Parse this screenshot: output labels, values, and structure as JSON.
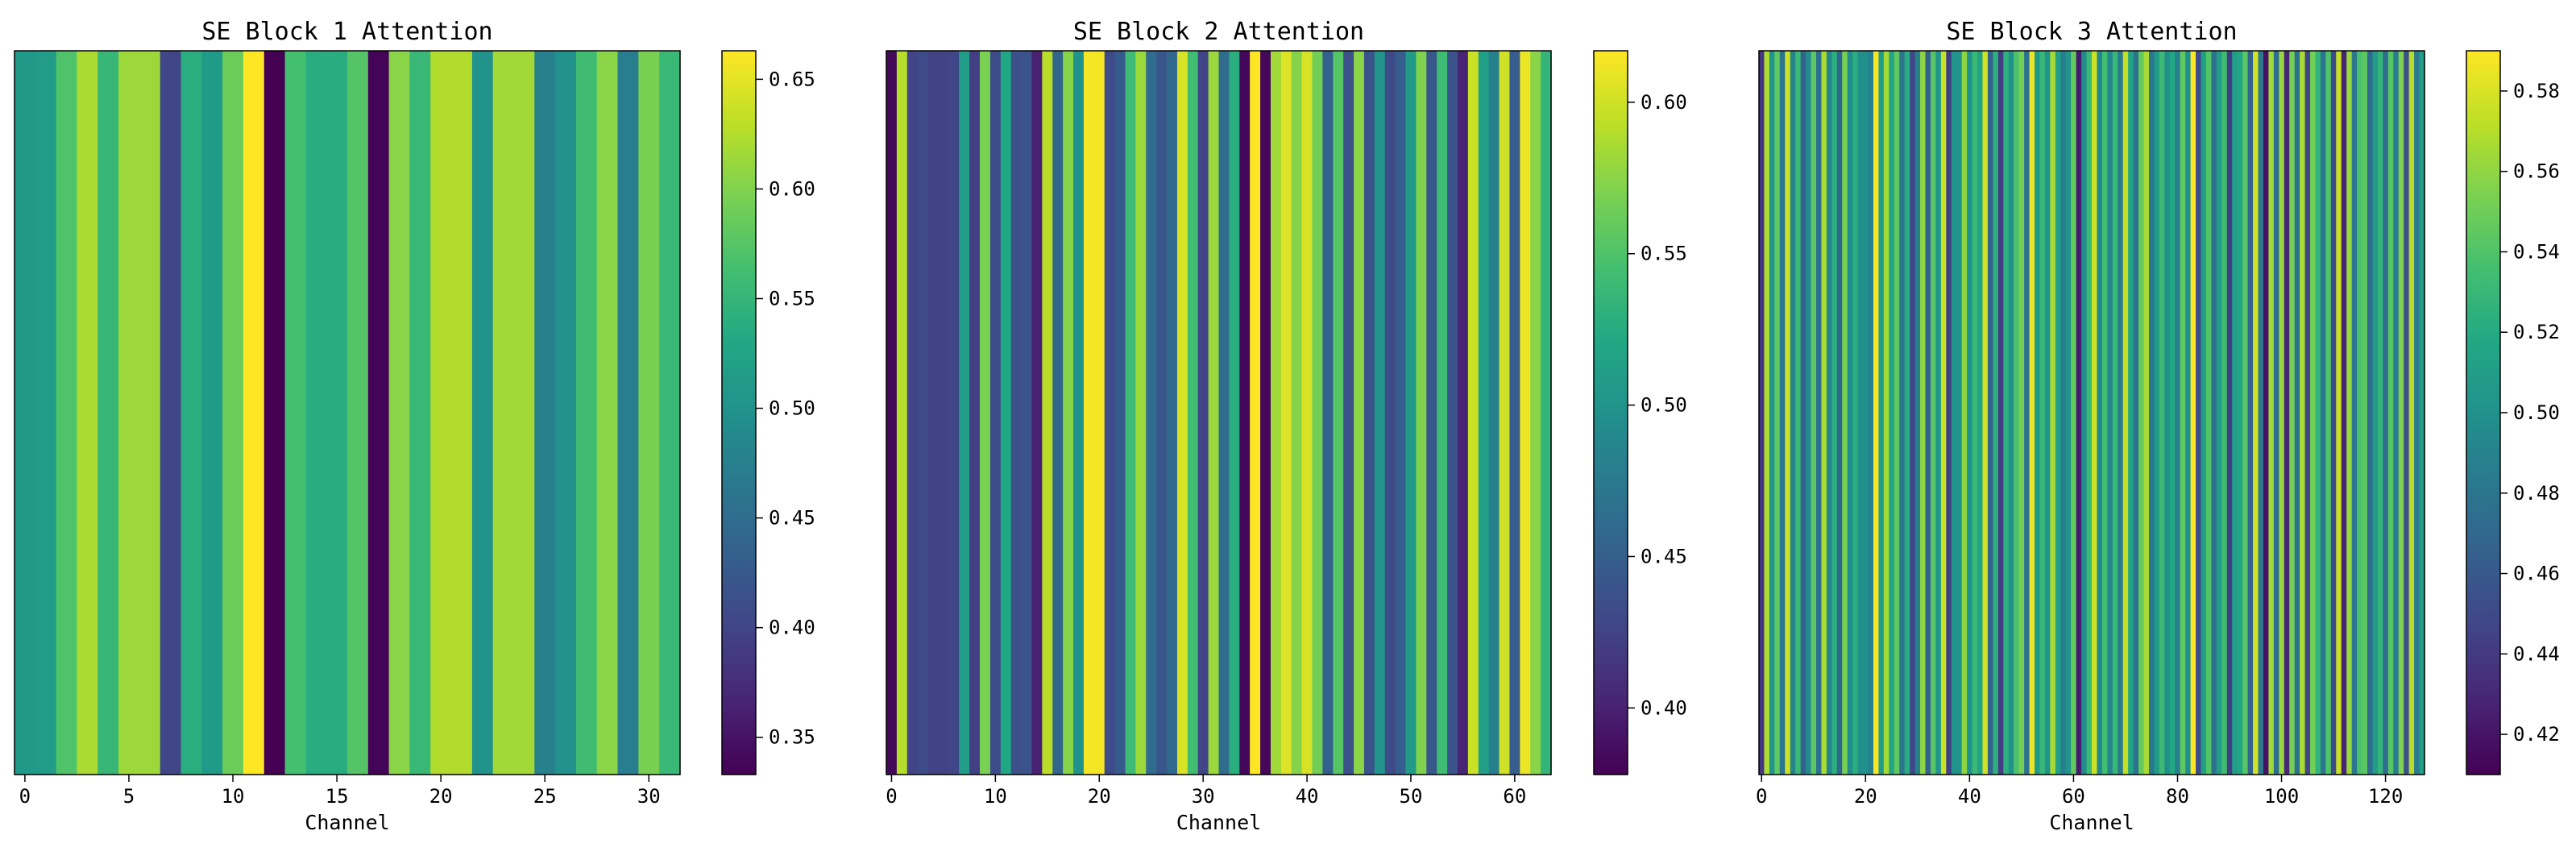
{
  "chart_data": [
    {
      "type": "heatmap",
      "title": "SE Block 1 Attention",
      "xlabel": "Channel",
      "ylabel": "",
      "xlim": [
        -0.5,
        31.5
      ],
      "xticks": [
        0,
        5,
        10,
        15,
        20,
        25,
        30
      ],
      "colormap": "viridis",
      "colorbar": {
        "min": 0.333,
        "max": 0.663,
        "ticks": [
          0.35,
          0.4,
          0.45,
          0.5,
          0.55,
          0.6,
          0.65
        ]
      },
      "values": [
        0.51,
        0.514,
        0.571,
        0.62,
        0.551,
        0.614,
        0.614,
        0.401,
        0.54,
        0.512,
        0.588,
        0.663,
        0.333,
        0.564,
        0.538,
        0.538,
        0.574,
        0.337,
        0.605,
        0.553,
        0.624,
        0.624,
        0.501,
        0.617,
        0.617,
        0.477,
        0.5,
        0.56,
        0.605,
        0.472,
        0.596,
        0.554
      ]
    },
    {
      "type": "heatmap",
      "title": "SE Block 2 Attention",
      "xlabel": "Channel",
      "ylabel": "",
      "xlim": [
        -0.5,
        63.5
      ],
      "xticks": [
        0,
        10,
        20,
        30,
        40,
        50,
        60
      ],
      "colormap": "viridis",
      "colorbar": {
        "min": 0.378,
        "max": 0.617,
        "ticks": [
          0.4,
          0.45,
          0.5,
          0.55,
          0.6
        ]
      },
      "values": [
        0.382,
        0.59,
        0.426,
        0.432,
        0.424,
        0.424,
        0.428,
        0.51,
        0.422,
        0.569,
        0.432,
        0.52,
        0.436,
        0.44,
        0.4,
        0.592,
        0.456,
        0.574,
        0.5,
        0.614,
        0.614,
        0.432,
        0.445,
        0.541,
        0.581,
        0.462,
        0.442,
        0.458,
        0.603,
        0.543,
        0.426,
        0.581,
        0.462,
        0.528,
        0.382,
        0.617,
        0.382,
        0.583,
        0.605,
        0.573,
        0.602,
        0.565,
        0.452,
        0.553,
        0.436,
        0.575,
        0.44,
        0.501,
        0.432,
        0.448,
        0.508,
        0.571,
        0.443,
        0.542,
        0.44,
        0.402,
        0.598,
        0.513,
        0.482,
        0.6,
        0.448,
        0.61,
        0.575,
        0.535
      ]
    },
    {
      "type": "heatmap",
      "title": "SE Block 3 Attention",
      "xlabel": "Channel",
      "ylabel": "",
      "xlim": [
        -0.5,
        127.5
      ],
      "xticks": [
        0,
        20,
        40,
        60,
        80,
        100,
        120
      ],
      "colormap": "viridis",
      "colorbar": {
        "min": 0.41,
        "max": 0.59,
        "ticks": [
          0.42,
          0.44,
          0.46,
          0.48,
          0.5,
          0.52,
          0.54,
          0.56,
          0.58
        ]
      },
      "values": [
        0.439,
        0.568,
        0.503,
        0.545,
        0.48,
        0.577,
        0.491,
        0.531,
        0.467,
        0.495,
        0.544,
        0.477,
        0.567,
        0.492,
        0.523,
        0.47,
        0.553,
        0.497,
        0.523,
        0.499,
        0.5,
        0.488,
        0.589,
        0.51,
        0.565,
        0.515,
        0.545,
        0.48,
        0.521,
        0.447,
        0.487,
        0.559,
        0.466,
        0.542,
        0.503,
        0.575,
        0.444,
        0.503,
        0.501,
        0.559,
        0.502,
        0.531,
        0.515,
        0.577,
        0.467,
        0.524,
        0.442,
        0.524,
        0.5,
        0.539,
        0.552,
        0.478,
        0.585,
        0.508,
        0.529,
        0.502,
        0.566,
        0.512,
        0.487,
        0.503,
        0.547,
        0.424,
        0.496,
        0.531,
        0.576,
        0.494,
        0.535,
        0.493,
        0.53,
        0.484,
        0.574,
        0.514,
        0.479,
        0.547,
        0.566,
        0.481,
        0.508,
        0.532,
        0.499,
        0.517,
        0.488,
        0.545,
        0.499,
        0.59,
        0.451,
        0.511,
        0.541,
        0.477,
        0.51,
        0.534,
        0.444,
        0.509,
        0.516,
        0.543,
        0.468,
        0.578,
        0.481,
        0.418,
        0.564,
        0.475,
        0.562,
        0.429,
        0.552,
        0.477,
        0.567,
        0.446,
        0.551,
        0.527,
        0.48,
        0.54,
        0.451,
        0.575,
        0.428,
        0.562,
        0.481,
        0.538,
        0.544,
        0.473,
        0.507,
        0.528,
        0.473,
        0.542,
        0.486,
        0.555,
        0.454,
        0.57,
        0.484,
        0.509
      ]
    }
  ]
}
